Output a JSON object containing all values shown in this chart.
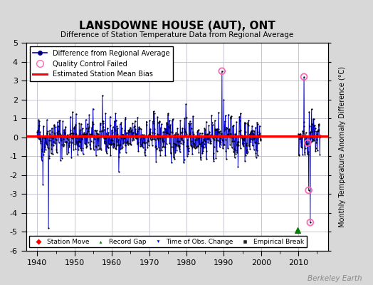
{
  "title": "LANSDOWNE HOUSE (AUT), ONT",
  "subtitle": "Difference of Station Temperature Data from Regional Average",
  "ylabel": "Monthly Temperature Anomaly Difference (°C)",
  "xlabel_years": [
    1940,
    1950,
    1960,
    1970,
    1980,
    1990,
    2000,
    2010
  ],
  "ylim": [
    -6,
    5
  ],
  "yticks": [
    -6,
    -5,
    -4,
    -3,
    -2,
    -1,
    0,
    1,
    2,
    3,
    4,
    5
  ],
  "xmin": 1937,
  "xmax": 2018,
  "bias_line_y": 0.05,
  "line_color": "#0000cc",
  "dot_color": "#000000",
  "bias_color": "#ff0000",
  "qc_color": "#ff69b4",
  "background_color": "#d8d8d8",
  "plot_bg_color": "#ffffff",
  "grid_color": "#bbbbcc",
  "watermark": "Berkeley Earth",
  "seed": 42,
  "data_start": 1940,
  "data_end1": 1999,
  "data_end2": 2015,
  "gap_start": 2000,
  "gap_end": 2009
}
